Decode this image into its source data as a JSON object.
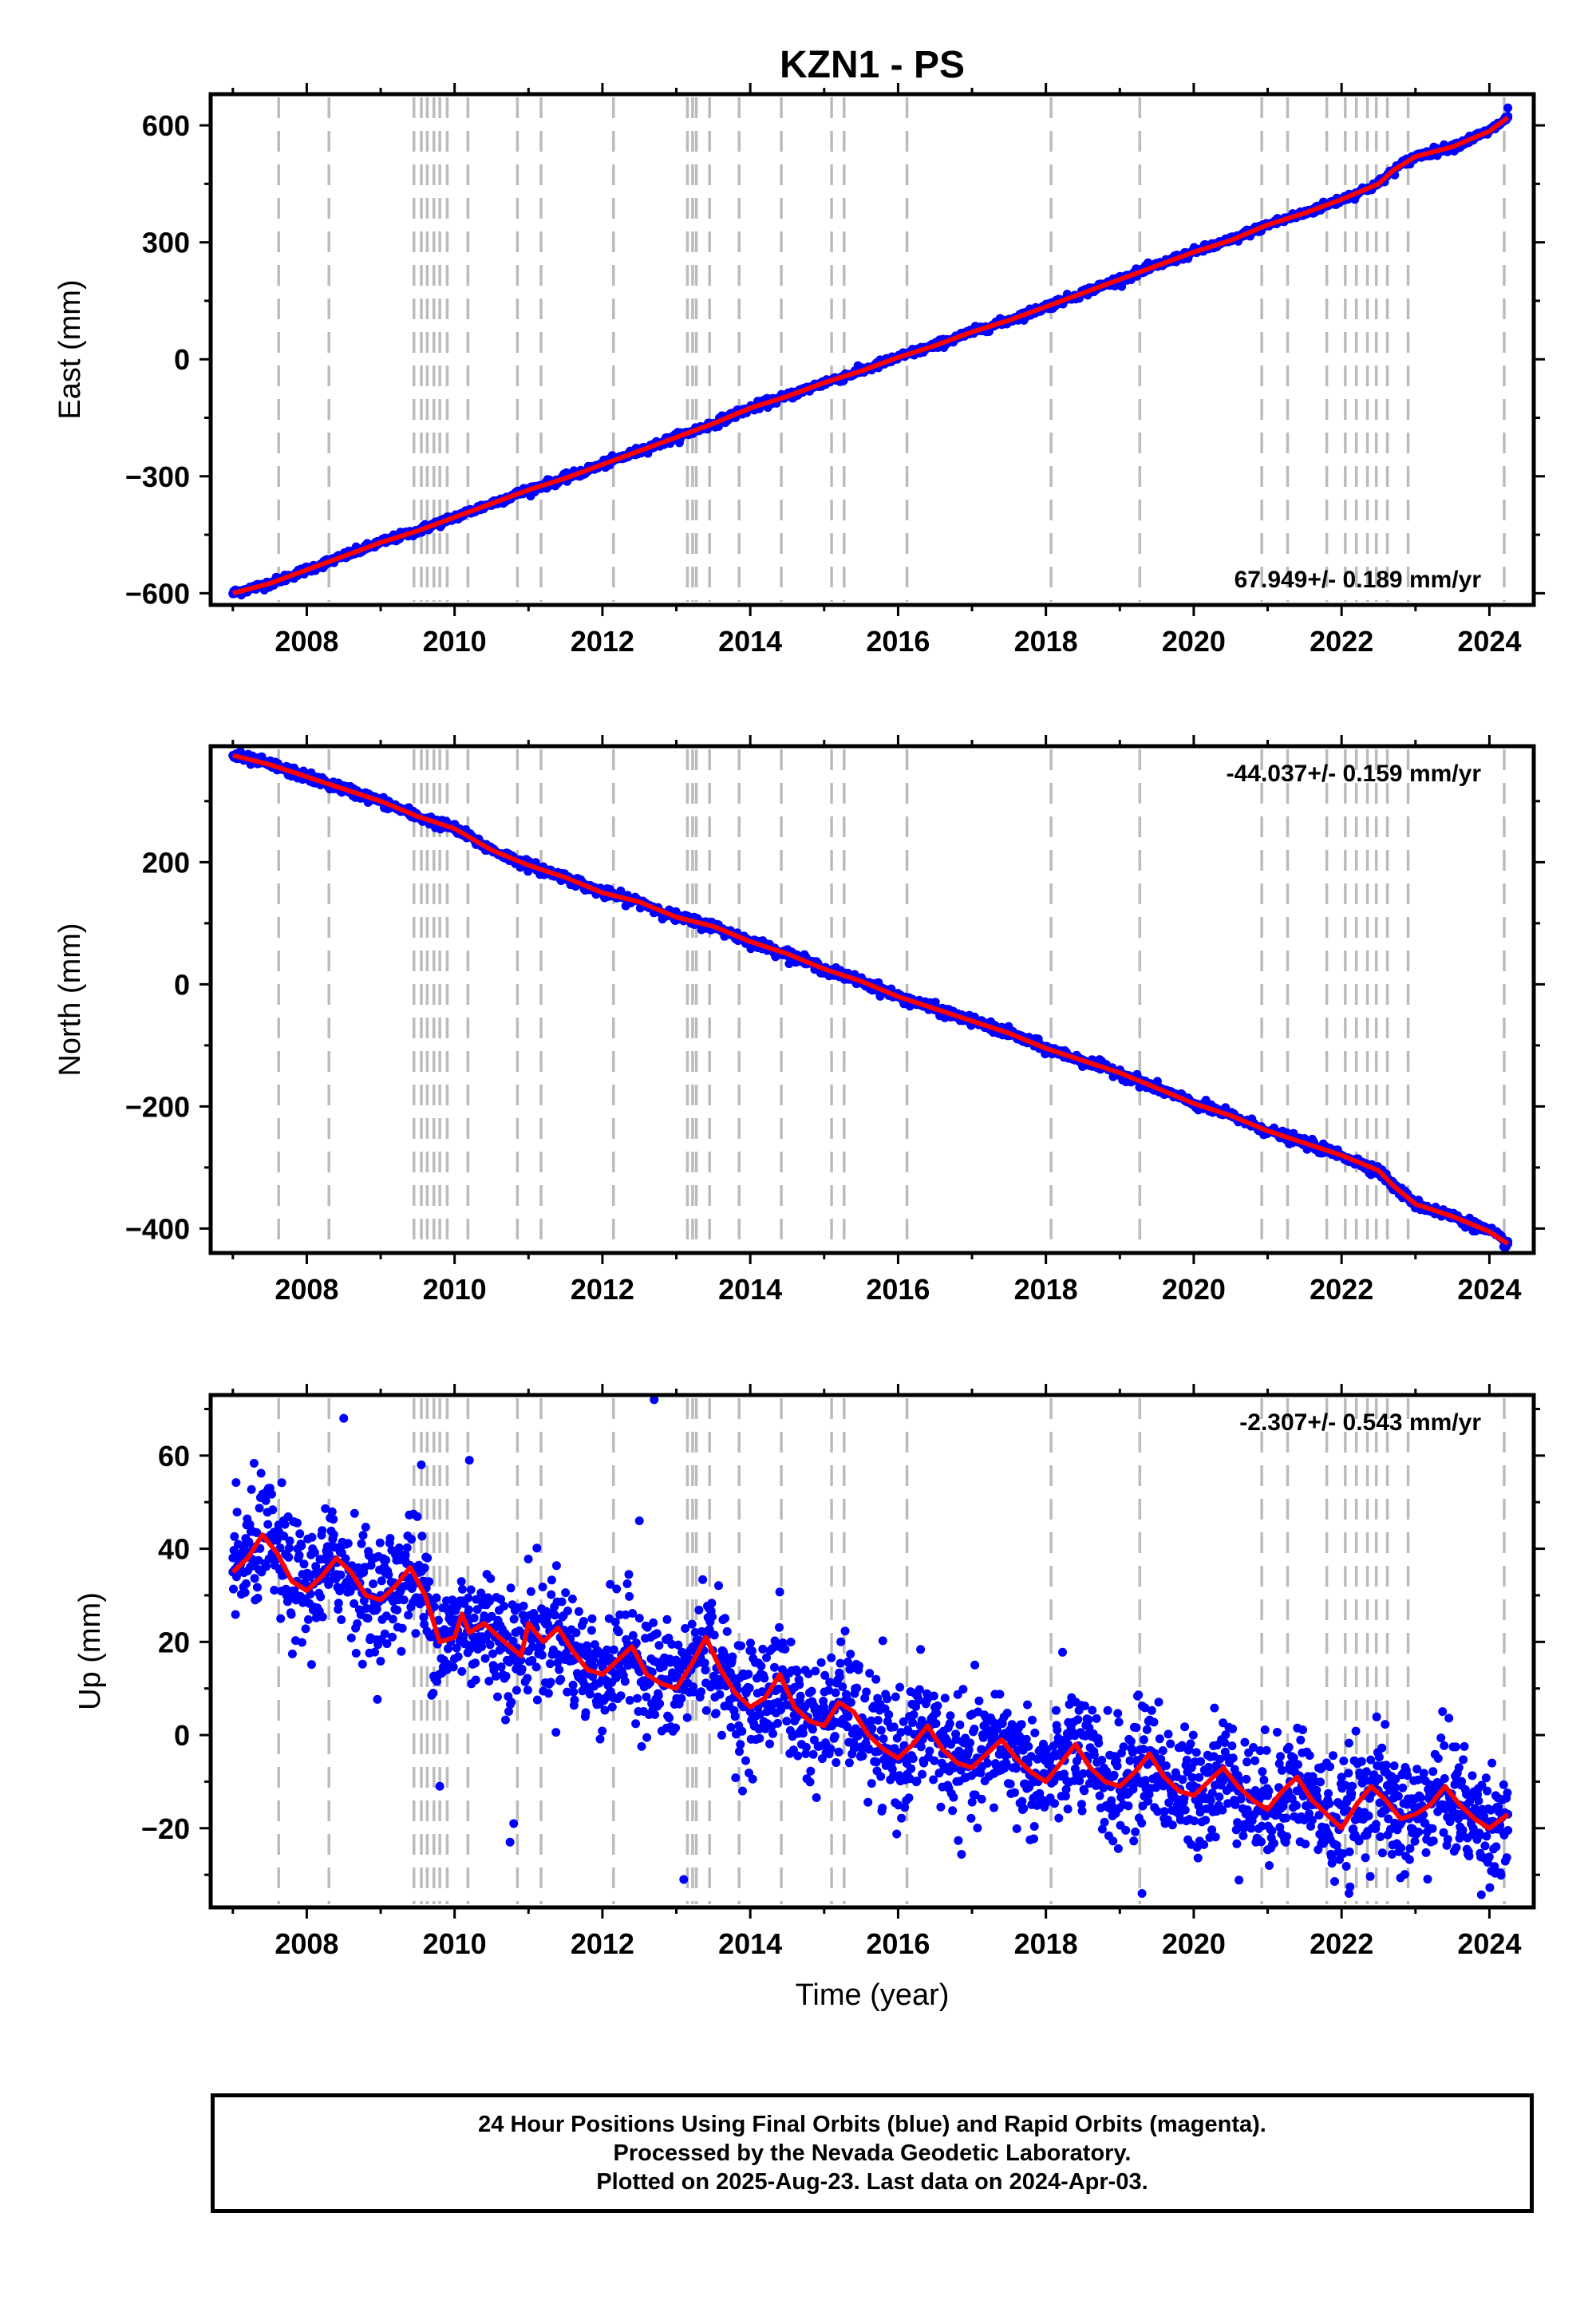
{
  "page_title": "KZN1 - PS",
  "x_axis_label": "Time (year)",
  "footer": {
    "line1": "24 Hour Positions Using Final Orbits (blue) and Rapid Orbits (magenta).",
    "line2": "Processed by the Nevada Geodetic Laboratory.",
    "line3": "Plotted on 2025-Aug-23. Last data on 2024-Apr-03."
  },
  "colors": {
    "final_orbits": "#0000ff",
    "model_fit": "#ff0000",
    "step_lines": "#bbbbbb",
    "frame": "#000000"
  },
  "chart_data": [
    {
      "type": "scatter",
      "name": "east",
      "title": "KZN1 - PS",
      "xlabel": "",
      "ylabel": "East (mm)",
      "xlim": [
        2006.7,
        2024.6
      ],
      "ylim": [
        -630,
        680
      ],
      "xticks": [
        2008,
        2010,
        2012,
        2014,
        2016,
        2018,
        2020,
        2022,
        2024
      ],
      "yticks": [
        -600,
        -300,
        0,
        300,
        600
      ],
      "rate_label": "67.949+/- 0.189 mm/yr",
      "rate_position": "bottom-right",
      "grid": false,
      "series": [
        {
          "kind": "points",
          "x": [
            2007.0,
            2007.5,
            2008.0,
            2008.5,
            2009.0,
            2009.5,
            2010.0,
            2010.5,
            2011.0,
            2011.5,
            2012.0,
            2012.5,
            2013.0,
            2013.5,
            2014.0,
            2014.5,
            2015.0,
            2015.5,
            2016.0,
            2016.5,
            2017.0,
            2017.5,
            2018.0,
            2018.5,
            2019.0,
            2019.5,
            2020.0,
            2020.5,
            2021.0,
            2021.5,
            2022.0,
            2022.5,
            2022.7,
            2023.0,
            2023.5,
            2024.0,
            2024.25
          ],
          "y": [
            -600,
            -575,
            -540,
            -505,
            -470,
            -440,
            -405,
            -370,
            -335,
            -305,
            -270,
            -235,
            -200,
            -165,
            -125,
            -95,
            -60,
            -30,
            5,
            35,
            70,
            100,
            135,
            170,
            205,
            240,
            275,
            305,
            345,
            375,
            410,
            450,
            485,
            520,
            545,
            585,
            620
          ]
        },
        {
          "kind": "outlier",
          "x": [
            2024.25
          ],
          "y": [
            645
          ]
        }
      ],
      "model": {
        "x": [
          2007.0,
          2007.5,
          2008.0,
          2008.5,
          2009.0,
          2009.5,
          2010.0,
          2010.5,
          2011.0,
          2011.5,
          2012.0,
          2012.5,
          2013.0,
          2013.5,
          2014.0,
          2014.5,
          2015.0,
          2015.5,
          2016.0,
          2016.5,
          2017.0,
          2017.5,
          2018.0,
          2018.5,
          2019.0,
          2019.5,
          2020.0,
          2020.5,
          2021.0,
          2021.5,
          2022.0,
          2022.5,
          2022.7,
          2023.0,
          2023.5,
          2024.0,
          2024.25
        ],
        "y": [
          -600,
          -575,
          -540,
          -505,
          -470,
          -440,
          -405,
          -370,
          -335,
          -305,
          -270,
          -235,
          -200,
          -165,
          -125,
          -95,
          -60,
          -30,
          5,
          35,
          70,
          100,
          135,
          170,
          205,
          240,
          275,
          305,
          345,
          375,
          410,
          450,
          485,
          520,
          545,
          585,
          620
        ]
      }
    },
    {
      "type": "scatter",
      "name": "north",
      "xlabel": "",
      "ylabel": "North (mm)",
      "xlim": [
        2006.7,
        2024.6
      ],
      "ylim": [
        -440,
        390
      ],
      "xticks": [
        2008,
        2010,
        2012,
        2014,
        2016,
        2018,
        2020,
        2022,
        2024
      ],
      "yticks": [
        -400,
        -200,
        0,
        200
      ],
      "rate_label": "-44.037+/- 0.159 mm/yr",
      "rate_position": "top-right",
      "grid": false,
      "series": [
        {
          "kind": "points",
          "x": [
            2007.0,
            2007.5,
            2008.0,
            2008.5,
            2009.0,
            2009.5,
            2010.0,
            2010.5,
            2011.0,
            2011.5,
            2012.0,
            2012.5,
            2013.0,
            2013.5,
            2014.0,
            2014.5,
            2015.0,
            2015.5,
            2016.0,
            2016.5,
            2017.0,
            2017.5,
            2018.0,
            2018.5,
            2019.0,
            2019.5,
            2020.0,
            2020.5,
            2021.0,
            2021.5,
            2022.0,
            2022.5,
            2022.7,
            2023.0,
            2023.5,
            2024.0,
            2024.25
          ],
          "y": [
            375,
            360,
            340,
            320,
            300,
            275,
            255,
            220,
            195,
            175,
            150,
            135,
            110,
            95,
            70,
            50,
            25,
            5,
            -20,
            -40,
            -60,
            -80,
            -105,
            -125,
            -145,
            -170,
            -195,
            -215,
            -240,
            -260,
            -280,
            -305,
            -330,
            -360,
            -380,
            -405,
            -425
          ]
        }
      ],
      "model": {
        "x": [
          2007.0,
          2007.5,
          2008.0,
          2008.5,
          2009.0,
          2009.5,
          2010.0,
          2010.5,
          2011.0,
          2011.5,
          2012.0,
          2012.5,
          2013.0,
          2013.5,
          2014.0,
          2014.5,
          2015.0,
          2015.5,
          2016.0,
          2016.5,
          2017.0,
          2017.5,
          2018.0,
          2018.5,
          2019.0,
          2019.5,
          2020.0,
          2020.5,
          2021.0,
          2021.5,
          2022.0,
          2022.5,
          2022.7,
          2023.0,
          2023.5,
          2024.0,
          2024.25
        ],
        "y": [
          375,
          360,
          340,
          320,
          300,
          275,
          255,
          220,
          195,
          175,
          150,
          135,
          110,
          95,
          70,
          50,
          25,
          5,
          -20,
          -40,
          -60,
          -80,
          -105,
          -125,
          -145,
          -170,
          -195,
          -215,
          -240,
          -260,
          -280,
          -305,
          -330,
          -360,
          -380,
          -405,
          -425
        ]
      }
    },
    {
      "type": "scatter",
      "name": "up",
      "xlabel": "Time (year)",
      "ylabel": "Up (mm)",
      "xlim": [
        2006.7,
        2024.6
      ],
      "ylim": [
        -37,
        73
      ],
      "xticks": [
        2008,
        2010,
        2012,
        2014,
        2016,
        2018,
        2020,
        2022,
        2024
      ],
      "yticks": [
        -20,
        0,
        20,
        40,
        60
      ],
      "rate_label": "-2.307+/- 0.543 mm/yr",
      "rate_position": "top-right",
      "grid": false,
      "series": [
        {
          "kind": "points",
          "x": [
            2007.0,
            2007.3,
            2007.6,
            2008.0,
            2008.3,
            2008.6,
            2009.0,
            2009.3,
            2009.6,
            2010.0,
            2010.3,
            2010.6,
            2011.0,
            2011.3,
            2011.6,
            2012.0,
            2012.3,
            2012.6,
            2013.0,
            2013.3,
            2013.6,
            2014.0,
            2014.3,
            2014.6,
            2015.0,
            2015.3,
            2015.6,
            2016.0,
            2016.3,
            2016.6,
            2017.0,
            2017.3,
            2017.6,
            2018.0,
            2018.3,
            2018.6,
            2019.0,
            2019.3,
            2019.6,
            2020.0,
            2020.3,
            2020.6,
            2021.0,
            2021.3,
            2021.6,
            2022.0,
            2022.3,
            2022.6,
            2023.0,
            2023.3,
            2023.6,
            2024.0,
            2024.25
          ],
          "y": [
            35,
            40,
            42,
            32,
            37,
            35,
            30,
            34,
            33,
            22,
            23,
            20,
            18,
            22,
            16,
            12,
            17,
            14,
            10,
            19,
            12,
            5,
            10,
            3,
            2,
            5,
            0,
            -5,
            2,
            -4,
            -6,
            0,
            -5,
            -9,
            -2,
            -8,
            -11,
            -5,
            -9,
            -12,
            -8,
            -12,
            -13,
            -10,
            -15,
            -19,
            -13,
            -16,
            -17,
            -12,
            -15,
            -20,
            -17
          ]
        },
        {
          "kind": "outlier",
          "x": [
            2008.5,
            2009.55,
            2010.2,
            2010.75,
            2012.7,
            2013.1,
            2012.5,
            2010.8,
            2019.3,
            2022.1,
            2009.8
          ],
          "y": [
            68,
            58,
            59,
            -23,
            72,
            -31,
            46,
            -19,
            -34,
            -34,
            -11
          ]
        }
      ],
      "model": {
        "x": [
          2007.0,
          2007.2,
          2007.4,
          2007.6,
          2007.8,
          2008.0,
          2008.2,
          2008.4,
          2008.6,
          2008.8,
          2009.0,
          2009.2,
          2009.4,
          2009.6,
          2009.7,
          2009.8,
          2010.0,
          2010.1,
          2010.2,
          2010.4,
          2010.6,
          2010.9,
          2011.0,
          2011.2,
          2011.4,
          2011.6,
          2011.8,
          2012.0,
          2012.2,
          2012.4,
          2012.6,
          2012.8,
          2013.0,
          2013.2,
          2013.4,
          2013.6,
          2013.8,
          2014.0,
          2014.2,
          2014.4,
          2014.6,
          2014.8,
          2015.0,
          2015.2,
          2015.4,
          2015.6,
          2015.8,
          2016.0,
          2016.2,
          2016.4,
          2016.6,
          2016.8,
          2017.0,
          2017.2,
          2017.4,
          2017.6,
          2017.8,
          2018.0,
          2018.2,
          2018.4,
          2018.6,
          2018.8,
          2019.0,
          2019.2,
          2019.4,
          2019.6,
          2019.8,
          2020.0,
          2020.2,
          2020.4,
          2020.6,
          2020.8,
          2021.0,
          2021.2,
          2021.4,
          2021.6,
          2021.8,
          2022.0,
          2022.2,
          2022.4,
          2022.6,
          2022.8,
          2023.0,
          2023.2,
          2023.4,
          2023.6,
          2023.8,
          2024.0,
          2024.25
        ],
        "y": [
          35,
          38,
          43,
          39,
          33,
          31,
          34,
          38,
          35,
          30,
          29,
          32,
          36,
          30,
          25,
          20,
          21,
          26,
          22,
          24,
          21,
          17,
          24,
          20,
          23,
          18,
          14,
          13,
          16,
          19,
          13,
          11,
          10,
          15,
          21,
          14,
          9,
          6,
          8,
          13,
          6,
          3,
          2,
          7,
          5,
          0,
          -3,
          -5,
          -2,
          2,
          -3,
          -6,
          -7,
          -4,
          -1,
          -5,
          -8,
          -10,
          -6,
          -2,
          -7,
          -10,
          -11,
          -8,
          -4,
          -9,
          -12,
          -13,
          -10,
          -7,
          -11,
          -14,
          -16,
          -12,
          -9,
          -14,
          -17,
          -20,
          -15,
          -11,
          -14,
          -18,
          -17,
          -15,
          -11,
          -15,
          -18,
          -20,
          -17
        ]
      }
    }
  ],
  "step_epochs": [
    2007.62,
    2008.3,
    2009.45,
    2009.55,
    2009.63,
    2009.72,
    2009.8,
    2009.9,
    2010.18,
    2010.85,
    2011.17,
    2012.15,
    2013.15,
    2013.22,
    2013.27,
    2013.45,
    2013.85,
    2014.42,
    2015.1,
    2015.27,
    2016.12,
    2018.07,
    2019.27,
    2020.92,
    2021.27,
    2021.8,
    2022.05,
    2022.2,
    2022.35,
    2022.47,
    2022.62,
    2022.9,
    2024.2
  ]
}
